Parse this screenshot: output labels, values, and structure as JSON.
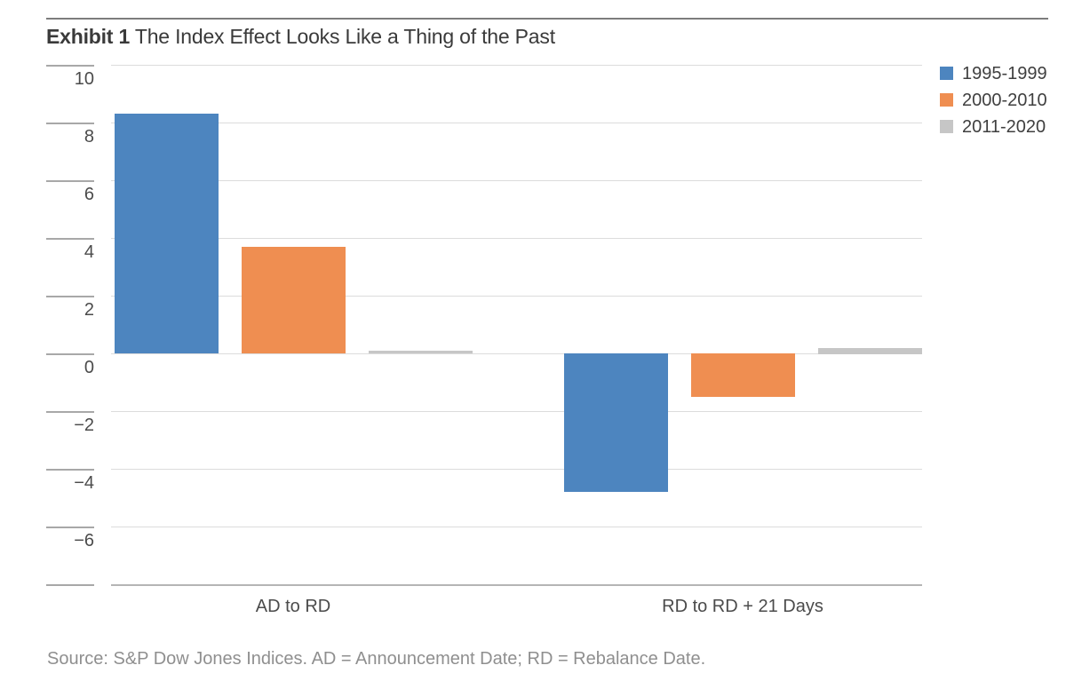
{
  "header": {
    "exhibit_label": "Exhibit 1",
    "title": "The Index Effect Looks Like a Thing of the Past"
  },
  "footer": {
    "source": "Source: S&P Dow Jones Indices. AD = Announcement Date; RD = Rebalance Date."
  },
  "colors": {
    "title_text": "#3a3a3a",
    "axis_text": "#4b4b4b",
    "source_text": "#8f8f8f",
    "gridline": "#dcdcdc",
    "tick": "#a8a8a8",
    "baseline": "#b5b5b5",
    "top_rule": "#7d7d7d",
    "background": "#ffffff"
  },
  "chart_data": {
    "type": "bar",
    "title": "Exhibit 1 The Index Effect Looks Like a Thing of the Past",
    "categories": [
      "AD to RD",
      "RD to RD + 21 Days"
    ],
    "series": [
      {
        "name": "1995-1999",
        "color": "#4d85bf",
        "values": [
          8.3,
          -4.8
        ]
      },
      {
        "name": "2000-2010",
        "color": "#ef8e51",
        "values": [
          3.7,
          -1.5
        ]
      },
      {
        "name": "2011-2020",
        "color": "#c6c6c6",
        "values": [
          0.1,
          0.2
        ]
      }
    ],
    "ylim": [
      -8,
      10
    ],
    "ytick_step": 2,
    "yticks_labeled": [
      10,
      8,
      6,
      4,
      2,
      0,
      -2,
      -4,
      -6
    ],
    "grid": true,
    "legend_position": "top-right"
  }
}
